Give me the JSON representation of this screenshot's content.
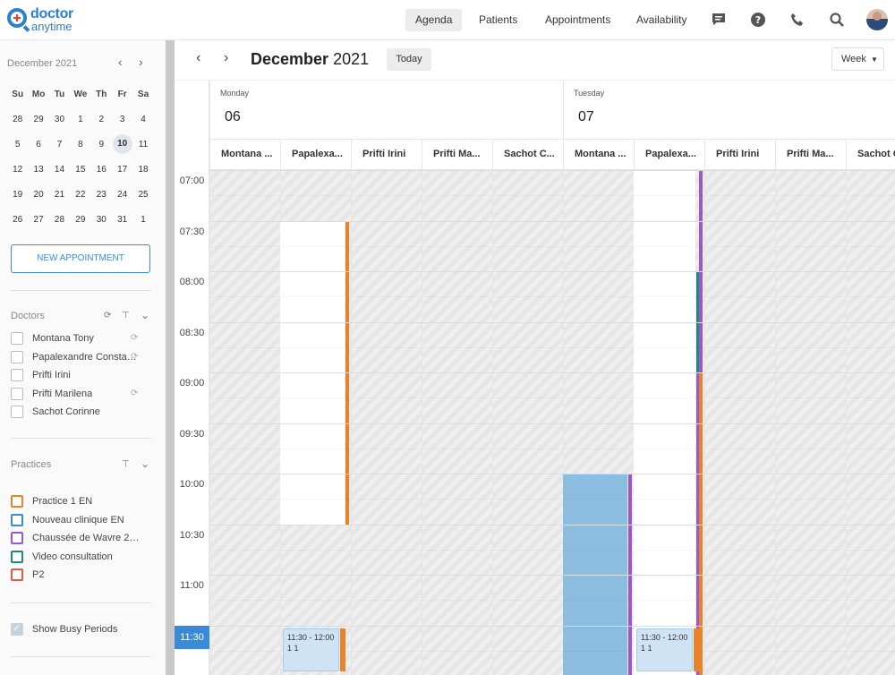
{
  "brand": {
    "line1": "doctor",
    "line2": "anytime"
  },
  "nav": {
    "items": [
      "Agenda",
      "Patients",
      "Appointments",
      "Availability"
    ],
    "icons": [
      "chat-icon",
      "help-icon",
      "phone-icon",
      "search-icon"
    ]
  },
  "sidebar": {
    "month": "December 2021",
    "weekdays": [
      "Su",
      "Mo",
      "Tu",
      "We",
      "Th",
      "Fr",
      "Sa"
    ],
    "weeks": [
      [
        "28",
        "29",
        "30",
        "1",
        "2",
        "3",
        "4"
      ],
      [
        "5",
        "6",
        "7",
        "8",
        "9",
        "10",
        "11"
      ],
      [
        "12",
        "13",
        "14",
        "15",
        "16",
        "17",
        "18"
      ],
      [
        "19",
        "20",
        "21",
        "22",
        "23",
        "24",
        "25"
      ],
      [
        "26",
        "27",
        "28",
        "29",
        "30",
        "31",
        "1"
      ]
    ],
    "today": "10",
    "new_appointment": "NEW APPOINTMENT",
    "doctors_title": "Doctors",
    "doctors": [
      {
        "label": "Montana Tony",
        "sync": true
      },
      {
        "label": "Papalexandre Constantin",
        "sync": true
      },
      {
        "label": "Prifti Irini",
        "sync": false
      },
      {
        "label": "Prifti Marilena",
        "sync": true
      },
      {
        "label": "Sachot Corinne",
        "sync": false
      }
    ],
    "practices_title": "Practices",
    "practices": [
      {
        "label": "Practice 1 EN",
        "color": "#e8832a"
      },
      {
        "label": "Nouveau clinique EN",
        "color": "#3b8ad8"
      },
      {
        "label": "Chaussée de Wavre 29...",
        "color": "#9b59c6"
      },
      {
        "label": "Video consultation",
        "color": "#1f8a7a"
      },
      {
        "label": "P2",
        "color": "#e05a4a"
      }
    ],
    "show_busy": "Show Busy Periods"
  },
  "toolbar": {
    "month": "December",
    "year": "2021",
    "today": "Today",
    "view": "Week"
  },
  "days": [
    {
      "name": "Monday",
      "num": "06"
    },
    {
      "name": "Tuesday",
      "num": "07"
    }
  ],
  "columns": [
    "Montana ...",
    "Papalexa...",
    "Prifti Irini",
    "Prifti Ma...",
    "Sachot C...",
    "Montana ...",
    "Papalexa...",
    "Prifti Irini",
    "Prifti Ma...",
    "Sachot C..."
  ],
  "times": [
    "07:00",
    "07:30",
    "08:00",
    "08:30",
    "09:00",
    "09:30",
    "10:00",
    "10:30",
    "11:00",
    "11:30"
  ],
  "current_time": "11:30",
  "appointments": [
    {
      "time": "11:30 - 12:00",
      "label": "1 1"
    },
    {
      "time": "11:30 - 12:00",
      "label": "1 1"
    }
  ]
}
